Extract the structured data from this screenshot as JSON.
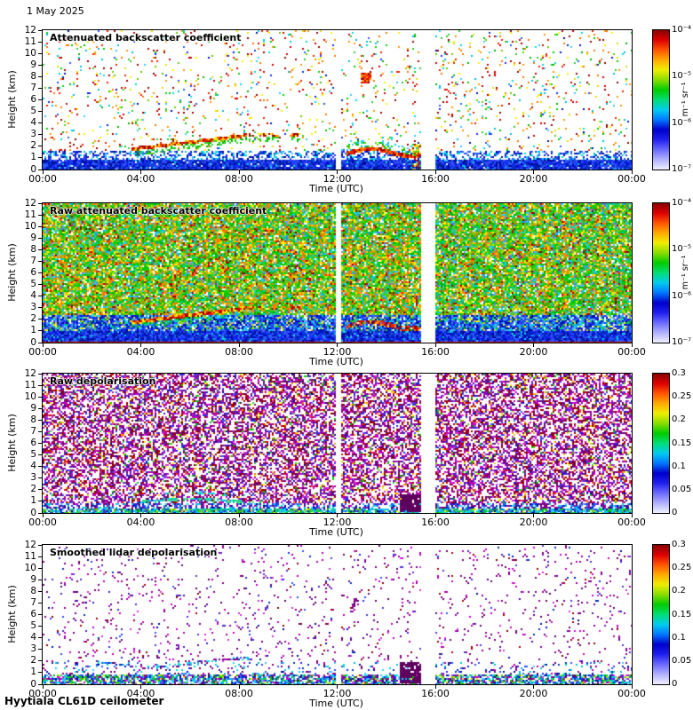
{
  "date_label": "1 May 2025",
  "footer_label": "Hyytiala CL61D ceilometer",
  "x_axis": {
    "label": "Time (UTC)",
    "tick_labels": [
      "00:00",
      "04:00",
      "08:00",
      "12:00",
      "16:00",
      "20:00",
      "00:00"
    ],
    "min_hour": 0,
    "max_hour": 24
  },
  "y_axis": {
    "label": "Height (km)",
    "tick_labels": [
      "0",
      "1",
      "2",
      "3",
      "4",
      "5",
      "6",
      "7",
      "8",
      "9",
      "10",
      "11",
      "12"
    ],
    "min_km": 0,
    "max_km": 12
  },
  "colorbar_backscatter": {
    "unit": "m⁻¹ sr⁻¹",
    "tick_labels": [
      "10⁻⁴",
      "10⁻⁵",
      "10⁻⁶",
      "10⁻⁷"
    ],
    "scale": "log",
    "range": [
      "1e-7",
      "1e-4"
    ]
  },
  "colorbar_depol": {
    "tick_labels": [
      "0.3",
      "0.25",
      "0.2",
      "0.15",
      "0.1",
      "0.05",
      "0"
    ],
    "scale": "linear",
    "range": [
      0,
      0.3
    ]
  },
  "colormap": {
    "name": "jet-like",
    "stops": [
      "#f0f0ff",
      "#b0b0ff",
      "#6a6aff",
      "#2020ee",
      "#0000cc",
      "#0077ff",
      "#00ccee",
      "#00dd77",
      "#00cc00",
      "#88dd00",
      "#eeee00",
      "#ffaa00",
      "#ff5500",
      "#dd0000",
      "#880000"
    ]
  },
  "data_gaps_hours": [
    [
      11.92,
      12.13
    ],
    [
      15.42,
      16.0
    ]
  ],
  "palettes": {
    "blues": [
      "#000a99",
      "#0016cc",
      "#1a2aff",
      "#2e4bee",
      "#0033bb",
      "#2b5cff"
    ],
    "light_blues": [
      "#5577ff",
      "#7799ff"
    ],
    "cyans": [
      "#00bde0",
      "#00d9d9",
      "#33ccff"
    ],
    "greens": [
      "#00b400",
      "#00d200",
      "#2fcc2f",
      "#66cc00"
    ],
    "yellows": [
      "#dede00",
      "#ffee00"
    ],
    "oranges": [
      "#ff9900",
      "#ff7300"
    ],
    "reds": [
      "#ee2200",
      "#cc0000",
      "#990000"
    ],
    "purples": [
      "#7a007a",
      "#990099",
      "#b300b3",
      "#660066",
      "#8b008b",
      "#5c0b8f"
    ],
    "magentas": [
      "#cc00cc",
      "#d633d6"
    ],
    "dark_reds": [
      "#8b0000",
      "#a40000"
    ],
    "violet_blues": [
      "#4422cc",
      "#5533dd"
    ]
  },
  "chart_data": [
    {
      "type": "heatmap",
      "title": "Attenuated backscatter coefficient",
      "x_label": "Time (UTC)",
      "y_label": "Height (km)",
      "x_range_hours": [
        0,
        24
      ],
      "y_range_km": [
        0,
        12
      ],
      "colorbar": "backscatter",
      "value_range": [
        "1e-7",
        "1e-4"
      ],
      "features": [
        "Dense boundary-layer aerosol (blue) below ~1 km all day",
        "Aerosol/cloud layer rising from ~1.8 km at 04:00 to ~3 km at 08:30 (red/yellow)",
        "Low cloud layer ~1.5-2 km between ~12:20 and 15:30",
        "Strong-return patch near 8 km around 13:00",
        "Sparse warm-coloured noise speckle above 2 km",
        "Data gaps just after 12:00 and 15:30-16:00"
      ],
      "generator": {
        "kind": "sparse_backscatter",
        "seed": 11
      }
    },
    {
      "type": "heatmap",
      "title": "Raw attenuated backscatter coefficient",
      "x_label": "Time (UTC)",
      "y_label": "Height (km)",
      "x_range_hours": [
        0,
        24
      ],
      "y_range_km": [
        0,
        12
      ],
      "colorbar": "backscatter",
      "value_range": [
        "1e-7",
        "1e-4"
      ],
      "features": [
        "Instrument noise fills the whole profile (green/yellow/orange speckle)",
        "Blue low-signal band below ~2.5 km, dark blue below ~1 km",
        "Red surface-return line at 0 km",
        "Same rising aerosol layer 04:00-08:30 and low cloud 12:20-15:30",
        "Noise slightly more uniform green after 16:00",
        "Data gaps just after 12:00 and 15:30-16:00"
      ],
      "generator": {
        "kind": "dense_backscatter",
        "seed": 22
      }
    },
    {
      "type": "heatmap",
      "title": "Raw depolarisation",
      "x_label": "Time (UTC)",
      "y_label": "Height (km)",
      "x_range_hours": [
        0,
        24
      ],
      "y_range_km": [
        0,
        12
      ],
      "colorbar": "depol",
      "value_range": [
        0,
        0.3
      ],
      "features": [
        "Random high-depolarisation noise (purple/magenta) wherever signal is weak",
        "Low depolarisation (cyan/blue/green) in boundary layer below ~0.5 km",
        "Cyan aerosol layer ~1-1.6 km between 04:00 and 08:30",
        "Elevated depolarisation block 14:40-15:25 below ~1.6 km",
        "Data gaps just after 12:00 and 15:30-16:00"
      ],
      "generator": {
        "kind": "dense_depol",
        "seed": 33
      }
    },
    {
      "type": "heatmap",
      "title": "Smoothed lidar depolarisation",
      "x_label": "Time (UTC)",
      "y_label": "Height (km)",
      "x_range_hours": [
        0,
        24
      ],
      "y_range_km": [
        0,
        12
      ],
      "colorbar": "depol",
      "value_range": [
        0,
        0.3
      ],
      "features": [
        "Mostly clear (white) with sparse purple speckle",
        "Boundary-layer band below ~1 km (blue/cyan/green, mild depolarisation)",
        "Wavy dotted aerosol layer ~1.5-2.3 km between 02:00 and 08:30",
        "Purple high-depolarisation block 14:40-15:25 below ~2 km",
        "Small purple patch near 7 km around 12:40",
        "Data gaps just after 12:00 and 15:30-16:00"
      ],
      "generator": {
        "kind": "sparse_depol",
        "seed": 44
      }
    }
  ]
}
